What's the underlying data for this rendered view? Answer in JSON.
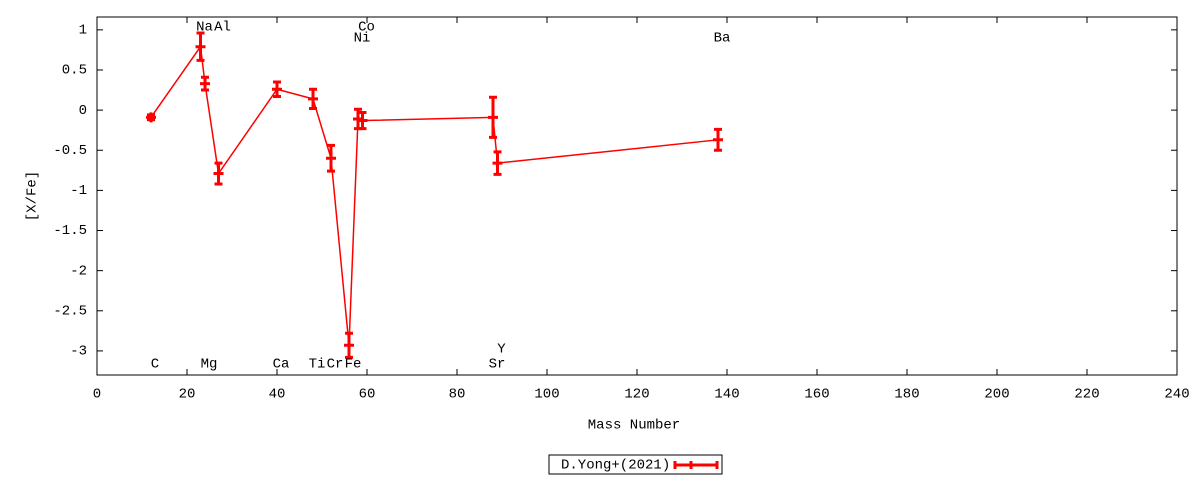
{
  "chart_data": {
    "type": "errorline",
    "x_label": "Mass Number",
    "y_label": "[X/Fe]",
    "xlim": [
      0,
      240
    ],
    "xticks": [
      0,
      20,
      40,
      60,
      80,
      100,
      120,
      140,
      160,
      180,
      200,
      220,
      240
    ],
    "ylim": [
      -3.3,
      1.16
    ],
    "yticks": [
      1,
      0.5,
      0,
      -0.5,
      -1,
      -1.5,
      -2,
      -2.5,
      -3
    ],
    "series": [
      {
        "name": "D.Yong+(2021)",
        "color": "#ff0000",
        "labels": [
          "C",
          "Na",
          "Mg",
          "Al",
          "Ca",
          "Ti",
          "Cr",
          "Fe",
          "Ni",
          "Co",
          "Sr",
          "Y",
          "Ba"
        ],
        "x": [
          12,
          23,
          24,
          27,
          40,
          48,
          52,
          56,
          58,
          59,
          88,
          89,
          138
        ],
        "values": [
          -0.09,
          0.79,
          0.33,
          -0.79,
          0.26,
          0.14,
          -0.6,
          -2.93,
          -0.11,
          -0.13,
          -0.09,
          -0.66,
          -0.37
        ],
        "errors": [
          0.03,
          0.17,
          0.08,
          0.13,
          0.09,
          0.12,
          0.16,
          0.15,
          0.12,
          0.1,
          0.25,
          0.14,
          0.13
        ]
      }
    ]
  }
}
